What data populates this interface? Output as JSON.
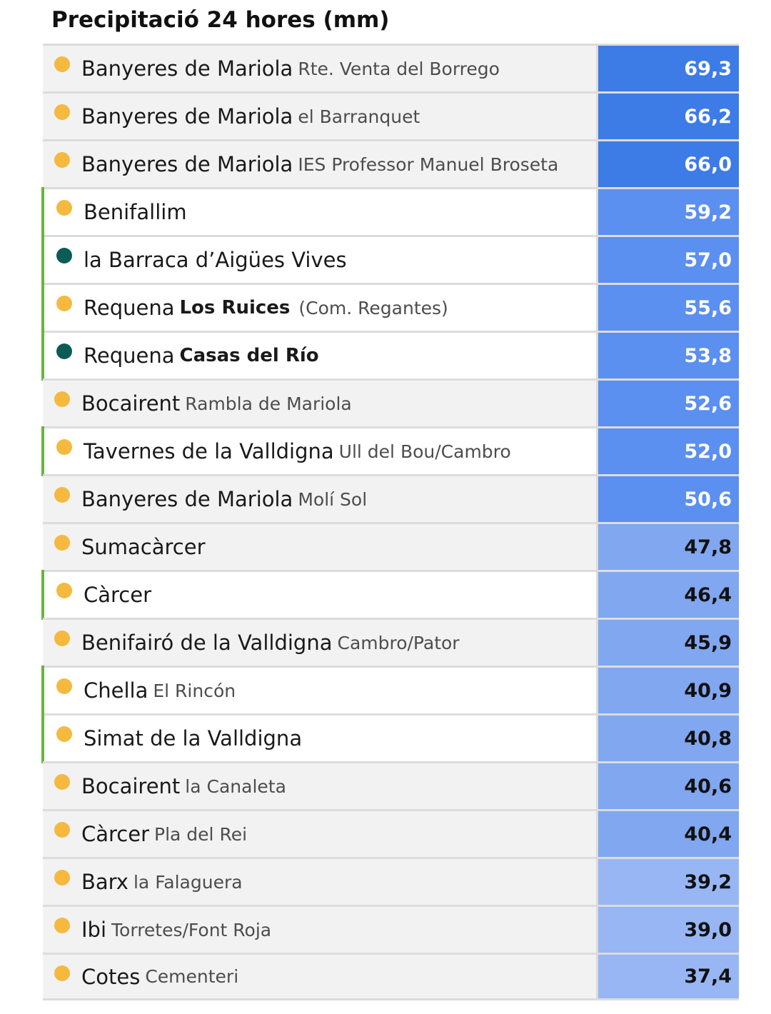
{
  "title": "Precipitació 24 hores (mm)",
  "colors": {
    "dot_yellow": "#f4b93e",
    "dot_green": "#0c5c55",
    "highlight_bar": "#6cb33f",
    "row_gray": "#f2f2f2",
    "row_white": "#ffffff",
    "value_dark_blue": "#3d7be6",
    "value_mid_blue": "#5b8ff0",
    "value_light_blue": "#80a7f0",
    "value_lighter_blue": "#97b6f3"
  },
  "rows": [
    {
      "town": "Banyeres de Mariola",
      "station": "Rte. Venta del Borrego",
      "value": "69,3",
      "dot": "yellow-dot-icon",
      "highlight": false
    },
    {
      "town": "Banyeres de Mariola",
      "station": "el Barranquet",
      "value": "66,2",
      "dot": "yellow-dot-icon",
      "highlight": false
    },
    {
      "town": "Banyeres de Mariola",
      "station": "IES Professor Manuel Broseta",
      "value": "66,0",
      "dot": "yellow-dot-icon",
      "highlight": false
    },
    {
      "town": "Benifallim",
      "station": "",
      "value": "59,2",
      "dot": "yellow-dot-icon",
      "highlight": true
    },
    {
      "town": "la Barraca d’Aigües Vives",
      "station": "",
      "value": "57,0",
      "dot": "green-dot-icon",
      "highlight": true
    },
    {
      "town": "Requena",
      "station": "Los Ruices",
      "station_bold": true,
      "extra": "(Com. Regantes)",
      "value": "55,6",
      "dot": "yellow-dot-icon",
      "highlight": true
    },
    {
      "town": "Requena",
      "station": "Casas del Río",
      "station_bold": true,
      "value": "53,8",
      "dot": "green-dot-icon",
      "highlight": true
    },
    {
      "town": "Bocairent",
      "station": "Rambla de Mariola",
      "value": "52,6",
      "dot": "yellow-dot-icon",
      "highlight": false
    },
    {
      "town": "Tavernes de la Valldigna",
      "station": "Ull del Bou/Cambro",
      "value": "52,0",
      "dot": "yellow-dot-icon",
      "highlight": true
    },
    {
      "town": "Banyeres de Mariola",
      "station": "Molí Sol",
      "value": "50,6",
      "dot": "yellow-dot-icon",
      "highlight": false
    },
    {
      "town": "Sumacàrcer",
      "station": "",
      "value": "47,8",
      "dot": "yellow-dot-icon",
      "highlight": false
    },
    {
      "town": "Càrcer",
      "station": "",
      "value": "46,4",
      "dot": "yellow-dot-icon",
      "highlight": true
    },
    {
      "town": "Benifairó de la Valldigna",
      "station": "Cambro/Pator",
      "value": "45,9",
      "dot": "yellow-dot-icon",
      "highlight": false
    },
    {
      "town": "Chella",
      "station": "El Rincón",
      "value": "40,9",
      "dot": "yellow-dot-icon",
      "highlight": true
    },
    {
      "town": "Simat de la Valldigna",
      "station": "",
      "value": "40,8",
      "dot": "yellow-dot-icon",
      "highlight": true
    },
    {
      "town": "Bocairent",
      "station": "la Canaleta",
      "value": "40,6",
      "dot": "yellow-dot-icon",
      "highlight": false
    },
    {
      "town": "Càrcer",
      "station": "Pla del Rei",
      "value": "40,4",
      "dot": "yellow-dot-icon",
      "highlight": false
    },
    {
      "town": "Barx",
      "station": "la Falaguera",
      "value": "39,2",
      "dot": "yellow-dot-icon",
      "highlight": false
    },
    {
      "town": "Ibi",
      "station": "Torretes/Font Roja",
      "value": "39,0",
      "dot": "yellow-dot-icon",
      "highlight": false
    },
    {
      "town": "Cotes",
      "station": "Cementeri",
      "value": "37,4",
      "dot": "yellow-dot-icon",
      "highlight": false
    }
  ]
}
